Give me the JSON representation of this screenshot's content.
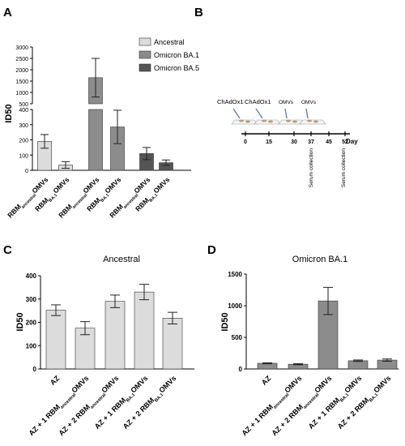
{
  "panel_labels": {
    "a": "A",
    "b": "B",
    "c": "C",
    "d": "D"
  },
  "colors": {
    "ancestral": "#dcdcdc",
    "ba1": "#8c8c8c",
    "ba5": "#555555",
    "stroke": "#333333"
  },
  "chart_data": [
    {
      "panel": "A",
      "type": "bar",
      "ylabel": "ID50",
      "ylim_lower": [
        0,
        400
      ],
      "ylim_upper": [
        500,
        3000
      ],
      "yticks_lower": [
        "0",
        "100",
        "200",
        "300",
        "400"
      ],
      "yticks_upper": [
        "500",
        "1000",
        "1500",
        "2000",
        "2500",
        "3000"
      ],
      "legend": [
        {
          "key": "ancestral",
          "label": "Ancestral"
        },
        {
          "key": "ba1",
          "label": "Omicron BA.1"
        },
        {
          "key": "ba5",
          "label": "Omicron BA.5"
        }
      ],
      "categories": [
        {
          "main": "RBM",
          "sub": "ancestral",
          "tail": "OMVs"
        },
        {
          "main": "RBM",
          "sub": "BA.1",
          "tail": "OMVs"
        },
        {
          "main": "RBM",
          "sub": "ancestral",
          "tail": "OMVs"
        },
        {
          "main": "RBM",
          "sub": "BA.1",
          "tail": "OMVs"
        },
        {
          "main": "RBM",
          "sub": "ancestral",
          "tail": "OMVs"
        },
        {
          "main": "RBM",
          "sub": "BA.1",
          "tail": "OMVs"
        }
      ],
      "groups": [
        "ancestral",
        "ancestral",
        "ba1",
        "ba1",
        "ba5",
        "ba5"
      ],
      "values": [
        190,
        35,
        1650,
        285,
        110,
        50
      ],
      "errors": [
        45,
        22,
        850,
        110,
        40,
        18
      ]
    },
    {
      "panel": "B",
      "type": "timeline",
      "labels": [
        "ChAdOx1",
        "ChAdOx1",
        "OMVs",
        "OMVs"
      ],
      "ticks": [
        0,
        15,
        30,
        37,
        45,
        52
      ],
      "unit": "Day",
      "events": [
        "Serum collection",
        "Serum collection"
      ]
    },
    {
      "panel": "C",
      "type": "bar",
      "title": "Ancestral",
      "ylabel": "ID50",
      "ylim": [
        0,
        400
      ],
      "yticks": [
        "0",
        "100",
        "200",
        "300",
        "400"
      ],
      "categories": [
        {
          "main": "AZ",
          "sub": "",
          "tail": ""
        },
        {
          "main": "AZ + 1 RBM",
          "sub": "ancestral",
          "tail": "OMVs"
        },
        {
          "main": "AZ + 2 RBM",
          "sub": "ancestral",
          "tail": "OMVs"
        },
        {
          "main": "AZ + 1 RBM",
          "sub": "BA.1",
          "tail": "OMVs"
        },
        {
          "main": "AZ + 2 RBM",
          "sub": "BA.1",
          "tail": "OMVs"
        }
      ],
      "values": [
        252,
        175,
        290,
        330,
        218
      ],
      "errors": [
        23,
        28,
        27,
        33,
        25
      ]
    },
    {
      "panel": "D",
      "type": "bar",
      "title": "Omicron BA.1",
      "ylabel": "ID50",
      "ylim": [
        0,
        1500
      ],
      "yticks": [
        "0",
        "500",
        "1000",
        "1500"
      ],
      "categories": [
        {
          "main": "AZ",
          "sub": "",
          "tail": ""
        },
        {
          "main": "AZ + 1 RBM",
          "sub": "ancestral",
          "tail": "OMVs"
        },
        {
          "main": "AZ + 2 RBM",
          "sub": "ancestral",
          "tail": "OMVs"
        },
        {
          "main": "AZ + 1 RBM",
          "sub": "BA.1",
          "tail": "OMVs"
        },
        {
          "main": "AZ + 2 RBM",
          "sub": "BA.1",
          "tail": "OMVs"
        }
      ],
      "values": [
        90,
        75,
        1075,
        130,
        140
      ],
      "errors": [
        8,
        8,
        215,
        12,
        18
      ]
    }
  ]
}
